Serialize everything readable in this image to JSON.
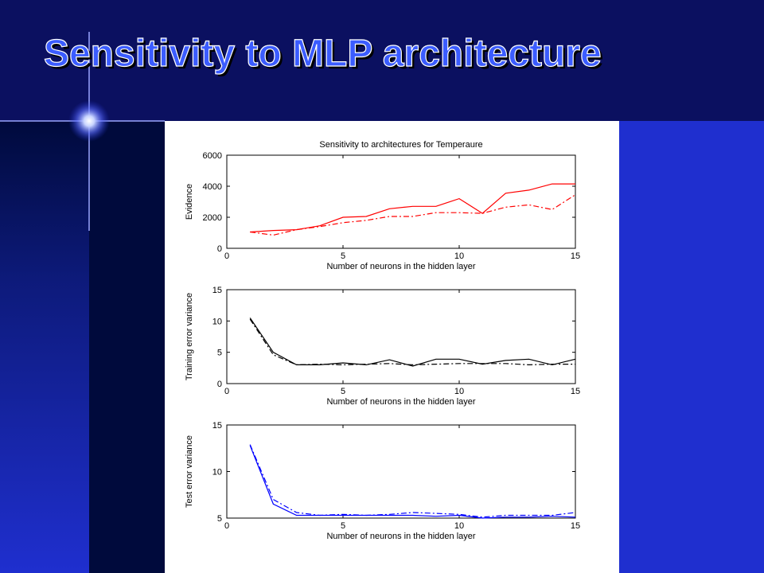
{
  "slide": {
    "title": "Sensitivity to MLP architecture"
  },
  "colors": {
    "background_blue": "#1f2fcf",
    "title_bar_navy": "#0b1060",
    "left_stripe_dark": "#000a3c",
    "title_text": "#3b5cff",
    "evidence_series": "#ff0000",
    "training_series": "#000000",
    "test_series": "#0000ff"
  },
  "chart_data": [
    {
      "type": "line",
      "title": "Sensitivity to architectures for Temperaure",
      "xlabel": "Number of neurons in the hidden layer",
      "ylabel": "Evidence",
      "xlim": [
        0,
        15
      ],
      "ylim": [
        0,
        6000
      ],
      "xticks": [
        "0",
        "5",
        "10",
        "15"
      ],
      "yticks": [
        "0",
        "2000",
        "4000",
        "6000"
      ],
      "color": "#ff0000",
      "series": [
        {
          "style": "solid",
          "x": [
            1,
            2,
            3,
            4,
            5,
            6,
            7,
            8,
            9,
            10,
            11,
            12,
            13,
            14,
            15
          ],
          "y": [
            1050,
            1150,
            1200,
            1450,
            2000,
            2050,
            2550,
            2700,
            2700,
            3200,
            2250,
            3550,
            3750,
            4150,
            4150
          ]
        },
        {
          "style": "dashdot",
          "x": [
            1,
            2,
            3,
            4,
            5,
            6,
            7,
            8,
            9,
            10,
            11,
            12,
            13,
            14,
            15
          ],
          "y": [
            1050,
            850,
            1200,
            1400,
            1650,
            1800,
            2050,
            2050,
            2300,
            2300,
            2250,
            2650,
            2800,
            2500,
            3450
          ]
        }
      ]
    },
    {
      "type": "line",
      "title": "",
      "xlabel": "Number of neurons in the hidden layer",
      "ylabel": "Training error variance",
      "xlim": [
        0,
        15
      ],
      "ylim": [
        0,
        15
      ],
      "xticks": [
        "0",
        "5",
        "10",
        "15"
      ],
      "yticks": [
        "0",
        "5",
        "10",
        "15"
      ],
      "color": "#000000",
      "series": [
        {
          "style": "solid",
          "x": [
            1,
            2,
            3,
            4,
            5,
            6,
            7,
            8,
            9,
            10,
            11,
            12,
            13,
            14,
            15
          ],
          "y": [
            10.5,
            5.0,
            3.0,
            3.0,
            3.3,
            3.0,
            3.8,
            2.8,
            3.9,
            3.9,
            3.1,
            3.7,
            3.9,
            3.0,
            3.9
          ]
        },
        {
          "style": "dashdot",
          "x": [
            1,
            2,
            3,
            4,
            5,
            6,
            7,
            8,
            9,
            10,
            11,
            12,
            13,
            14,
            15
          ],
          "y": [
            10.3,
            4.6,
            3.0,
            3.1,
            3.0,
            3.1,
            3.2,
            3.0,
            3.1,
            3.2,
            3.2,
            3.2,
            3.0,
            3.1,
            3.1
          ]
        }
      ]
    },
    {
      "type": "line",
      "title": "",
      "xlabel": "Number of neurons in the hidden layer",
      "ylabel": "Test error variance",
      "xlim": [
        0,
        15
      ],
      "ylim": [
        5,
        15
      ],
      "xticks": [
        "0",
        "5",
        "10",
        "15"
      ],
      "yticks": [
        "5",
        "10",
        "15"
      ],
      "color": "#0000ff",
      "series": [
        {
          "style": "solid",
          "x": [
            1,
            2,
            3,
            4,
            5,
            6,
            7,
            8,
            9,
            10,
            11,
            12,
            13,
            14,
            15
          ],
          "y": [
            12.8,
            6.5,
            5.3,
            5.3,
            5.3,
            5.3,
            5.3,
            5.3,
            5.2,
            5.3,
            5.0,
            5.1,
            5.1,
            5.2,
            5.1
          ]
        },
        {
          "style": "dashdot",
          "x": [
            1,
            2,
            3,
            4,
            5,
            6,
            7,
            8,
            9,
            10,
            11,
            12,
            13,
            14,
            15
          ],
          "y": [
            12.9,
            7.0,
            5.6,
            5.3,
            5.4,
            5.3,
            5.4,
            5.6,
            5.5,
            5.4,
            5.1,
            5.3,
            5.3,
            5.3,
            5.6
          ]
        }
      ]
    }
  ]
}
